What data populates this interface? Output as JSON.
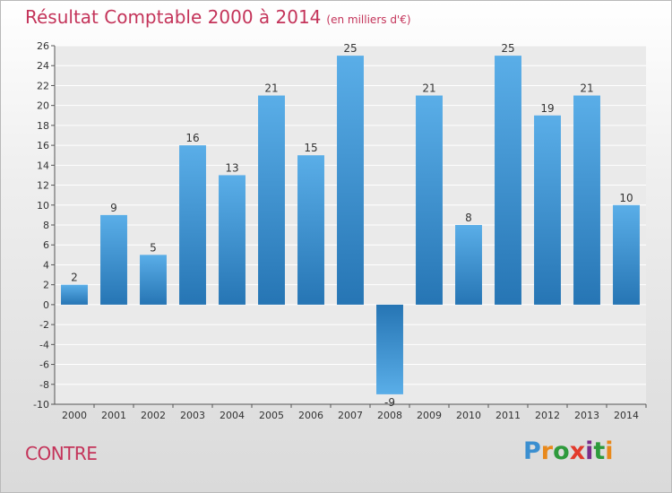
{
  "header": {
    "title": "Résultat Comptable 2000 à 2014",
    "subtitle": "(en milliers d'€)"
  },
  "footer": {
    "commune": "CONTRE",
    "logo_letters": [
      "P",
      "r",
      "o",
      "x",
      "i",
      "t",
      "i"
    ],
    "logo_colors": [
      "#3b8fd0",
      "#e8891c",
      "#2e9a3c",
      "#e23a2c",
      "#7a2c8a",
      "#2e9a3c",
      "#e8891c"
    ]
  },
  "chart_data": {
    "type": "bar",
    "title": "Résultat Comptable 2000 à 2014",
    "subtitle": "(en milliers d'€)",
    "categories": [
      "2000",
      "2001",
      "2002",
      "2003",
      "2004",
      "2005",
      "2006",
      "2007",
      "2008",
      "2009",
      "2010",
      "2011",
      "2012",
      "2013",
      "2014"
    ],
    "values": [
      2,
      9,
      5,
      16,
      13,
      21,
      15,
      25,
      -9,
      21,
      8,
      25,
      19,
      21,
      10
    ],
    "data_labels": [
      "2",
      "9",
      "5",
      "16",
      "13",
      "21",
      "15",
      "25",
      "-9",
      "21",
      "8",
      "25",
      "19",
      "21",
      "10"
    ],
    "yticks": [
      "-10",
      "-8",
      "-6",
      "-4",
      "-2",
      "0",
      "2",
      "4",
      "6",
      "8",
      "10",
      "12",
      "14",
      "16",
      "18",
      "20",
      "22",
      "24",
      "26"
    ],
    "ylim": [
      -10,
      26
    ],
    "grid": true,
    "bar_color_light": "#5aaee8",
    "bar_color_dark": "#2675b4"
  }
}
